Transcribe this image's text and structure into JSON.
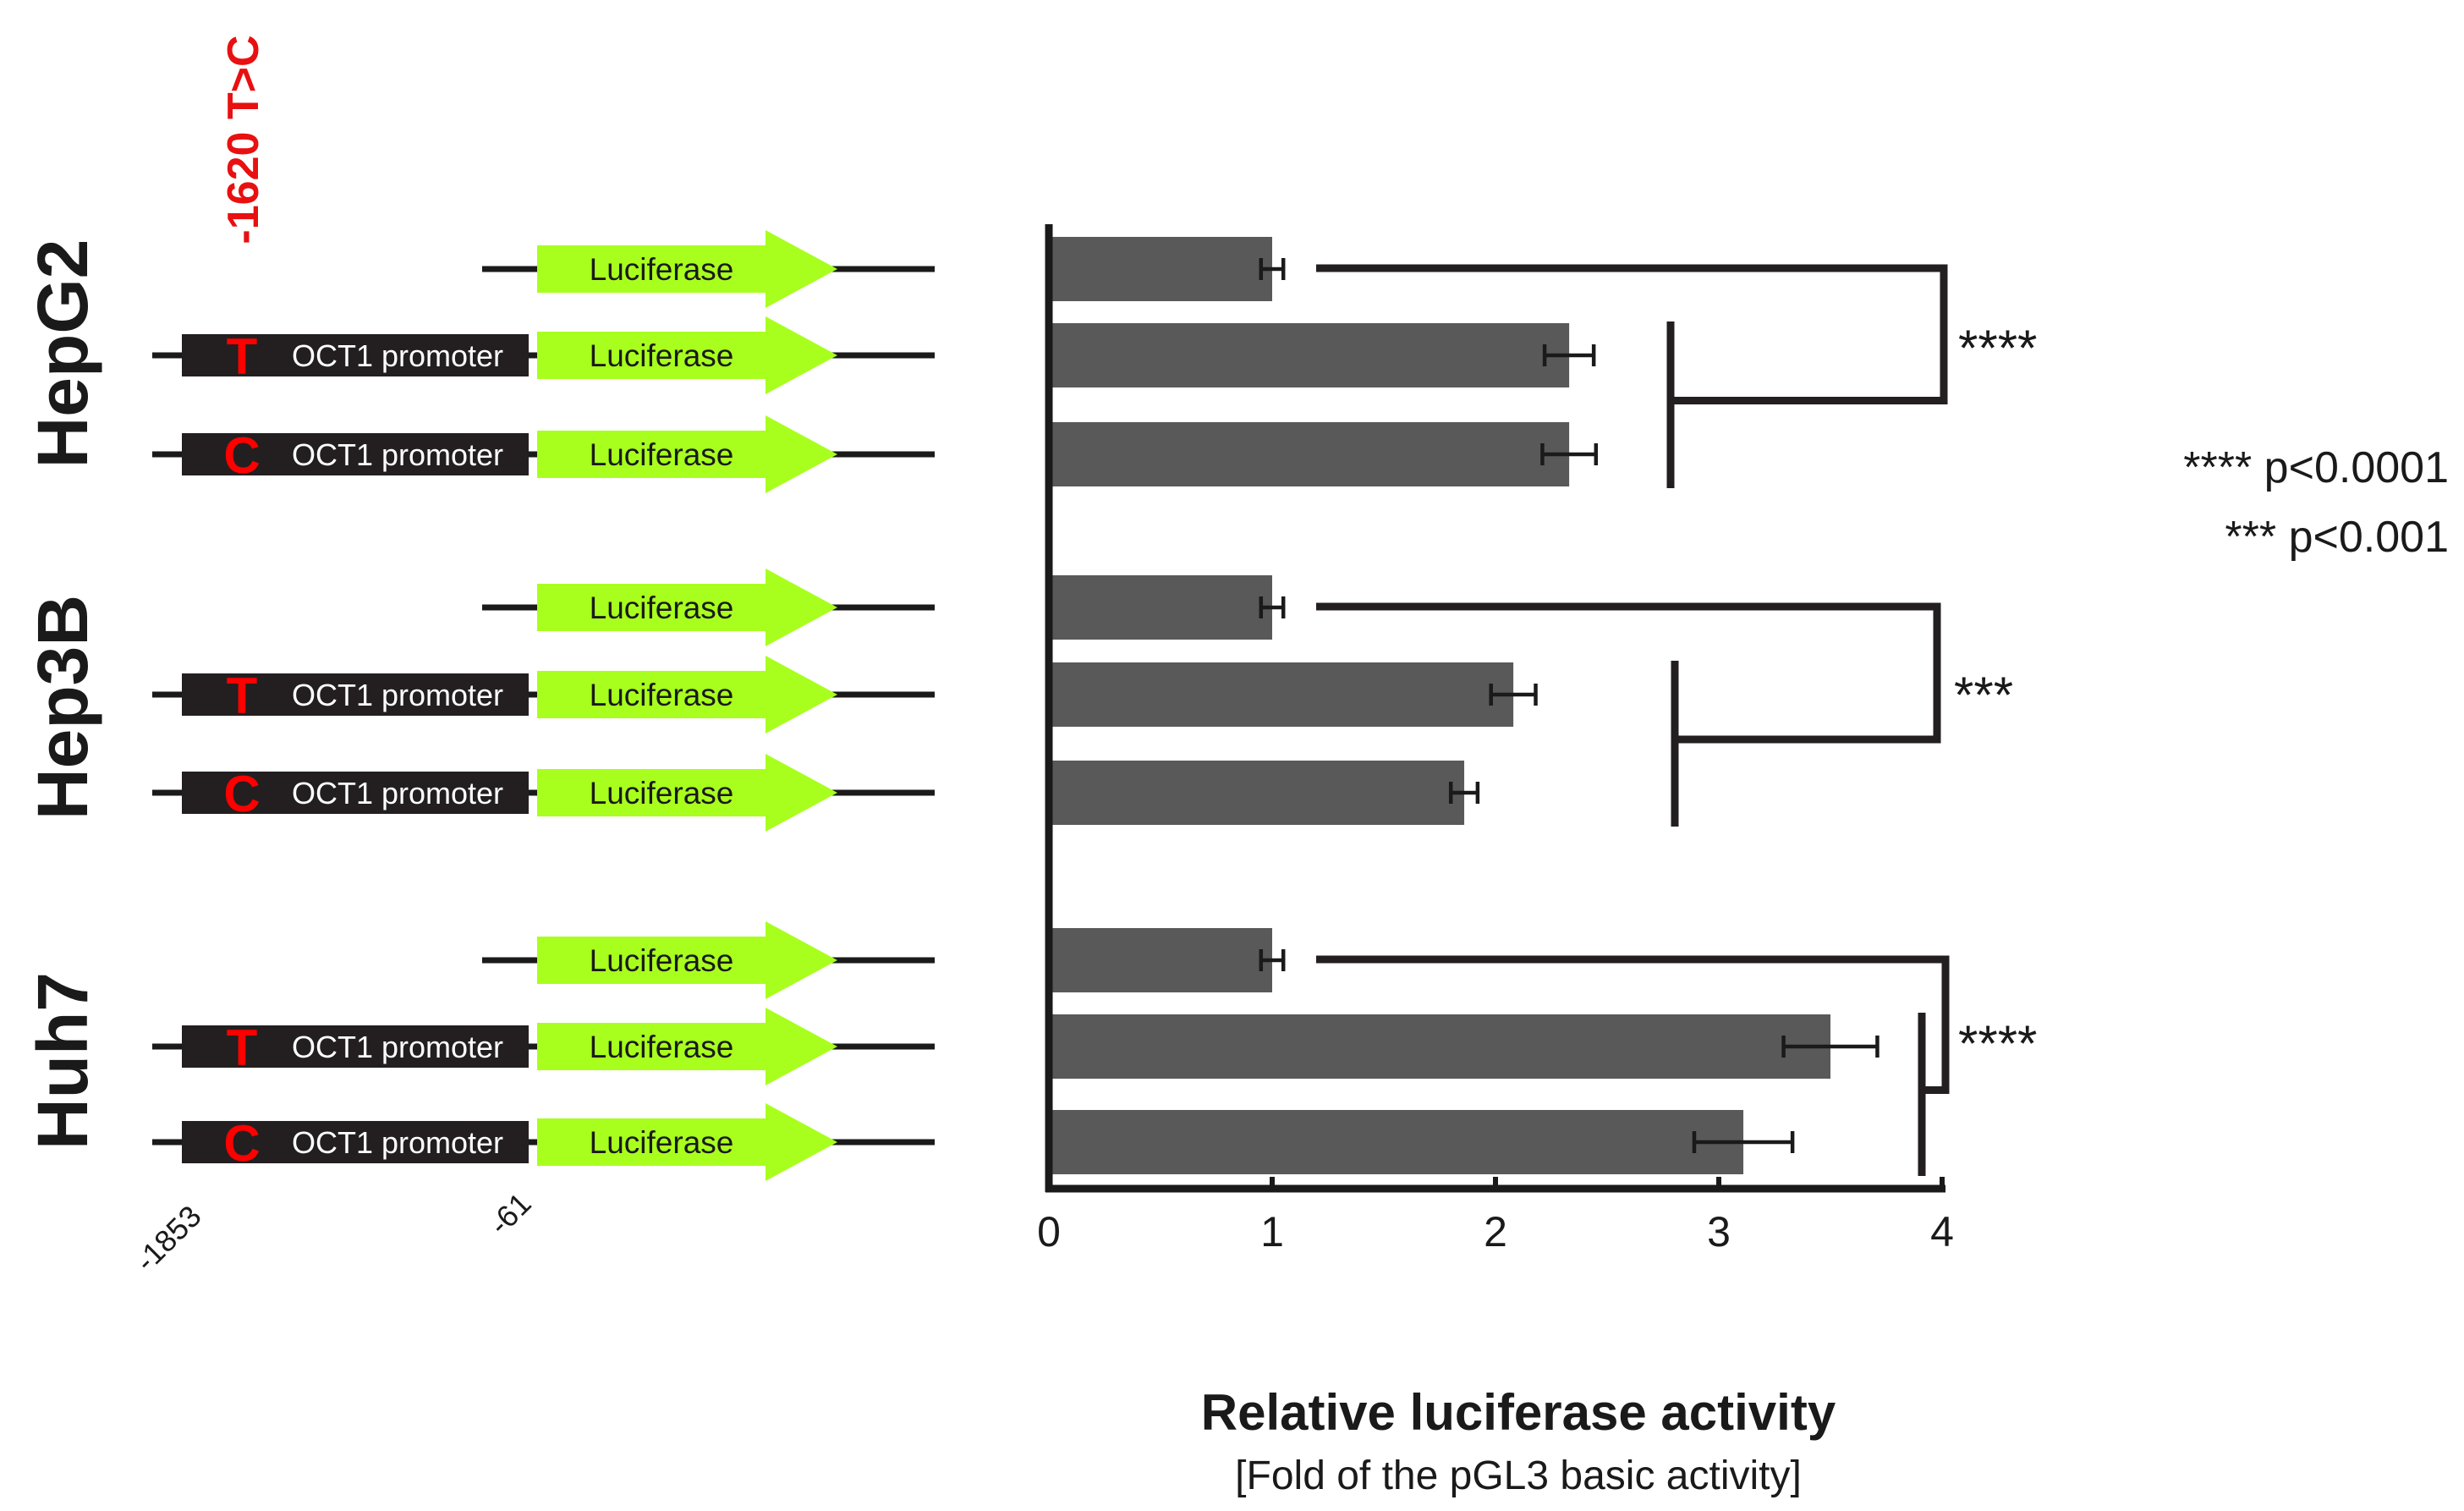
{
  "snp_label": "-1620 T>C",
  "construct_labels": {
    "promoter": "OCT1 promoter",
    "reporter": "Luciferase",
    "allele_t": "T",
    "allele_c": "C"
  },
  "position_labels": [
    "-1853",
    "-61"
  ],
  "legend": [
    "**** p<0.0001",
    "*** p<0.001"
  ],
  "colors": {
    "bar": "#595959",
    "luciferase_arrow": "#a8ff1e",
    "promoter_box": "#231f20",
    "allele": "#ff0000",
    "snp_label": "#e81010"
  },
  "chart_data": {
    "type": "bar",
    "orientation": "horizontal",
    "xlabel": "Relative luciferase activity",
    "xlabel_sub": "[Fold of the pGL3 basic activity]",
    "xlim": [
      0,
      4
    ],
    "xticks": [
      0,
      1,
      2,
      3,
      4
    ],
    "groups": [
      {
        "name": "HepG2",
        "bars": [
          {
            "construct": "empty",
            "value": 1.0,
            "error": 0.05
          },
          {
            "construct": "T",
            "value": 2.33,
            "error": 0.11
          },
          {
            "construct": "C",
            "value": 2.33,
            "error": 0.12
          }
        ],
        "significance": "****"
      },
      {
        "name": "Hep3B",
        "bars": [
          {
            "construct": "empty",
            "value": 1.0,
            "error": 0.05
          },
          {
            "construct": "T",
            "value": 2.08,
            "error": 0.1
          },
          {
            "construct": "C",
            "value": 1.86,
            "error": 0.06
          }
        ],
        "significance": "***"
      },
      {
        "name": "Huh7",
        "bars": [
          {
            "construct": "empty",
            "value": 1.0,
            "error": 0.05
          },
          {
            "construct": "T",
            "value": 3.5,
            "error": 0.21
          },
          {
            "construct": "C",
            "value": 3.11,
            "error": 0.22
          }
        ],
        "significance": "****"
      }
    ]
  }
}
